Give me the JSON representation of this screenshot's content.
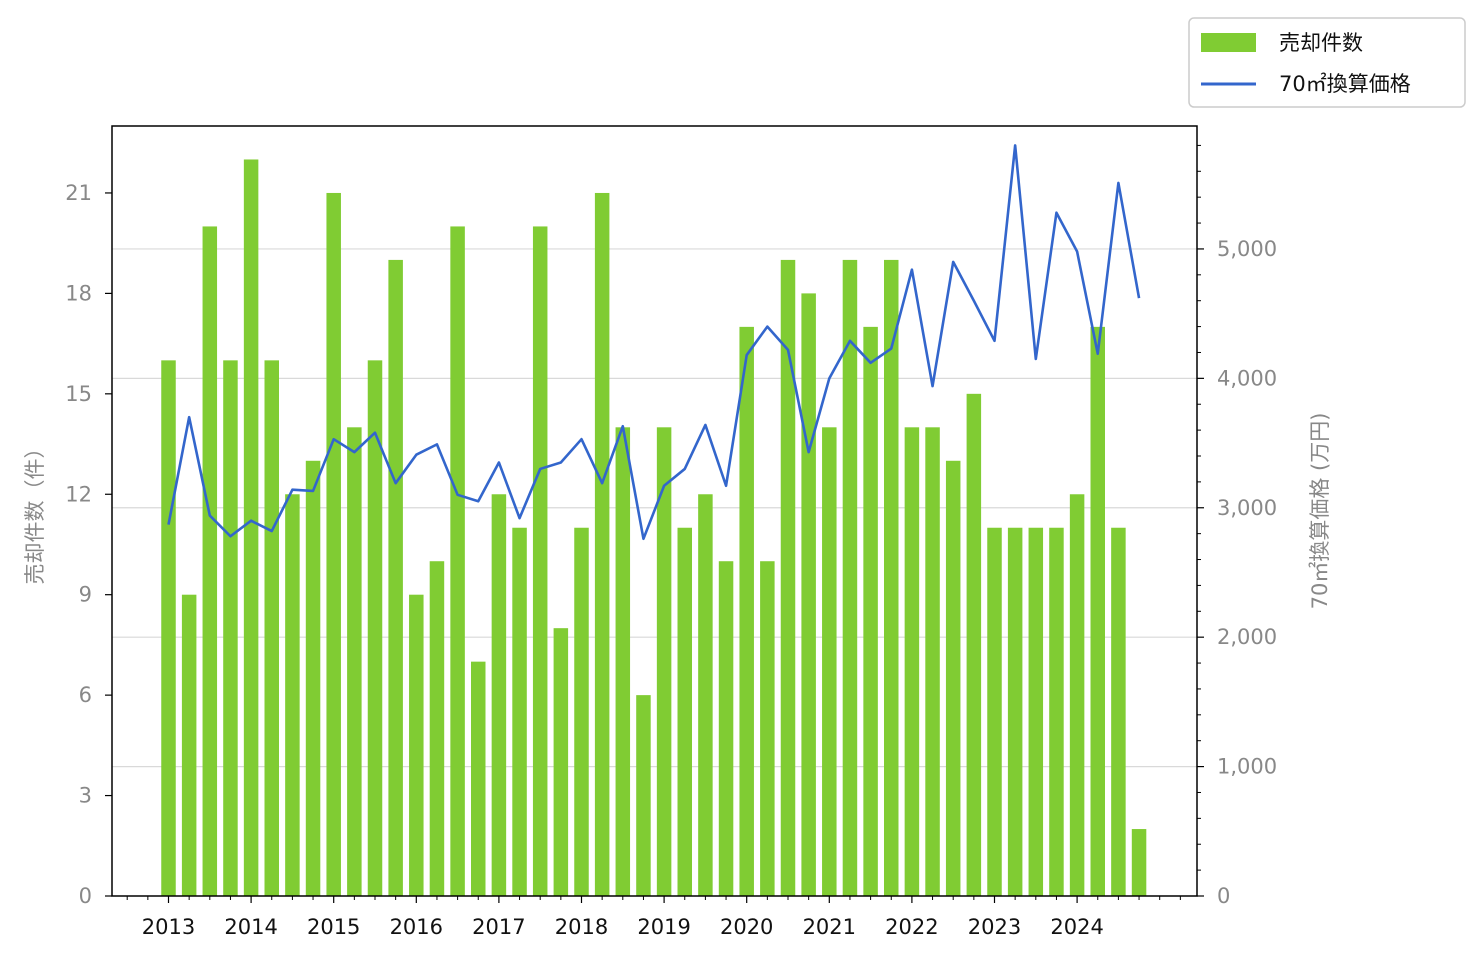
{
  "chart_data": {
    "type": "bar",
    "x_tick_labels": [
      "2013",
      "2014",
      "2015",
      "2016",
      "2017",
      "2018",
      "2019",
      "2020",
      "2021",
      "2022",
      "2023",
      "2024"
    ],
    "series": [
      {
        "name": "売却件数",
        "type": "bar",
        "axis": "left",
        "color": "#80cc33",
        "values": [
          16,
          9,
          20,
          16,
          22,
          16,
          12,
          13,
          21,
          14,
          16,
          19,
          9,
          10,
          20,
          7,
          12,
          11,
          20,
          8,
          11,
          21,
          14,
          6,
          14,
          11,
          12,
          10,
          17,
          10,
          19,
          18,
          14,
          19,
          17,
          19,
          14,
          14,
          13,
          15,
          11,
          11,
          11,
          11,
          12,
          17,
          11,
          2
        ]
      },
      {
        "name": "70㎡換算価格",
        "type": "line",
        "axis": "right",
        "color": "#3366cc",
        "values": [
          2870,
          3700,
          2940,
          2780,
          2900,
          2820,
          3140,
          3130,
          3530,
          3430,
          3580,
          3190,
          3410,
          3490,
          3100,
          3050,
          3350,
          2920,
          3300,
          3350,
          3530,
          3190,
          3630,
          2760,
          3170,
          3300,
          3640,
          3170,
          4180,
          4400,
          4220,
          3430,
          4000,
          4290,
          4120,
          4230,
          4840,
          3940,
          4900,
          4600,
          4290,
          5800,
          4150,
          5280,
          4980,
          4190,
          5510,
          4620
        ]
      }
    ],
    "left_axis": {
      "label": "売却件数（件）",
      "ylim": [
        0,
        23
      ],
      "ticks": [
        0,
        3,
        6,
        9,
        12,
        15,
        18,
        21
      ]
    },
    "right_axis": {
      "label": "70㎡換算価格 (万円)",
      "ylim": [
        0,
        5950
      ],
      "ticks": [
        0,
        1000,
        2000,
        3000,
        4000,
        5000
      ],
      "tick_labels": [
        "0",
        "1,000",
        "2,000",
        "3,000",
        "4,000",
        "5,000"
      ]
    },
    "grid": "horizontal, right axis",
    "legend_position": "top-right, above plot"
  }
}
